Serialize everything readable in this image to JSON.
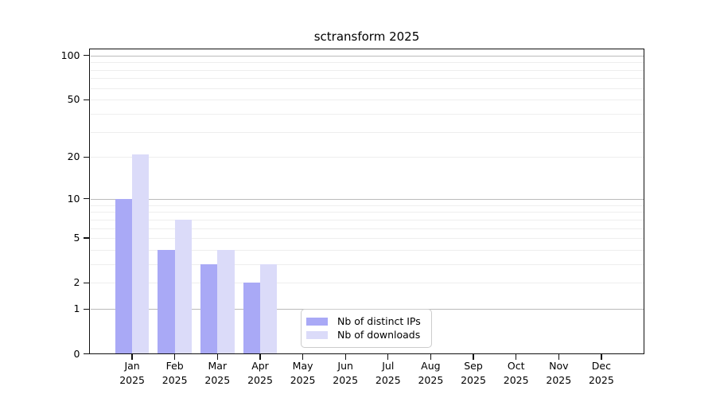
{
  "chart_data": {
    "type": "bar",
    "title": "sctransform 2025",
    "year": "2025",
    "categories": [
      "Jan",
      "Feb",
      "Mar",
      "Apr",
      "May",
      "Jun",
      "Jul",
      "Aug",
      "Sep",
      "Oct",
      "Nov",
      "Dec"
    ],
    "series": [
      {
        "name": "Nb of distinct IPs",
        "color": "#a9a9f6",
        "values": [
          10,
          4,
          3,
          2,
          0,
          0,
          0,
          0,
          0,
          0,
          0,
          0
        ]
      },
      {
        "name": "Nb of downloads",
        "color": "#dbdbf9",
        "values": [
          21,
          7,
          4,
          3,
          0,
          0,
          0,
          0,
          0,
          0,
          0,
          0
        ]
      }
    ],
    "y_scale": "log10(value+1)",
    "y_ticks": [
      0,
      1,
      2,
      5,
      10,
      20,
      50,
      100
    ],
    "y_major_gridlines": [
      1,
      10,
      100
    ],
    "y_minor_gridlines": [
      2,
      3,
      4,
      5,
      6,
      7,
      8,
      9,
      20,
      30,
      40,
      50,
      60,
      70,
      80,
      90
    ],
    "ylim": [
      0,
      110
    ],
    "grid": "horizontal",
    "legend_position": "bottom-center-inside"
  }
}
